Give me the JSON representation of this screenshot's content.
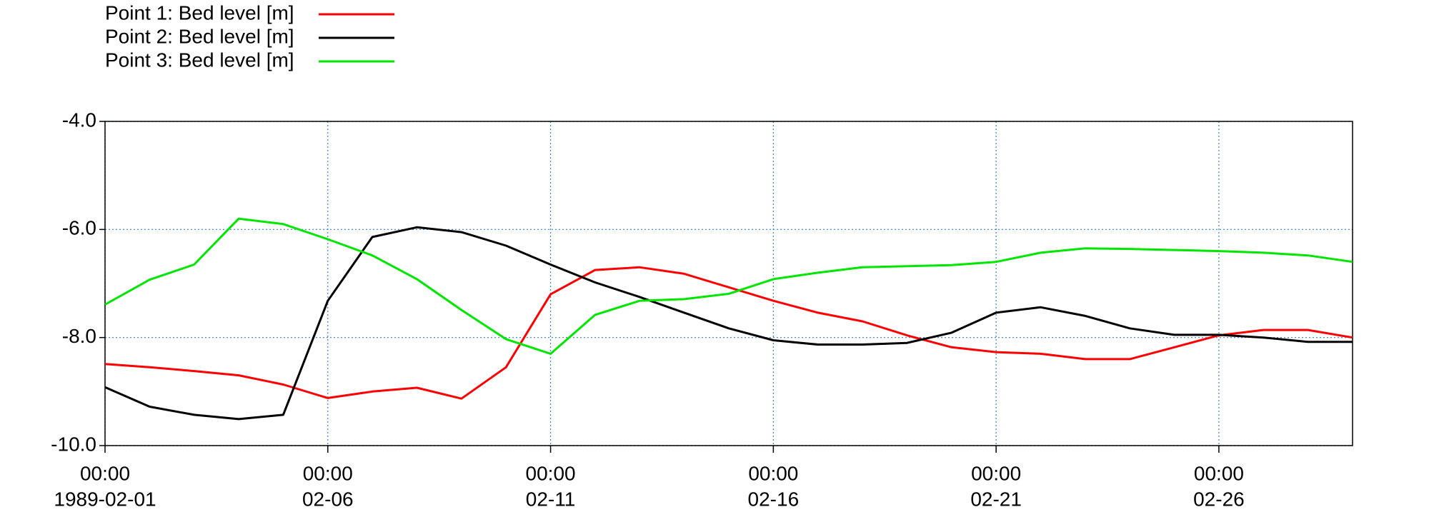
{
  "chart_data": {
    "type": "line",
    "x": [
      "1989-02-01T00:00",
      "1989-02-02T00:00",
      "1989-02-03T00:00",
      "1989-02-04T00:00",
      "1989-02-05T00:00",
      "1989-02-06T00:00",
      "1989-02-07T00:00",
      "1989-02-08T00:00",
      "1989-02-09T00:00",
      "1989-02-10T00:00",
      "1989-02-11T00:00",
      "1989-02-12T00:00",
      "1989-02-13T00:00",
      "1989-02-14T00:00",
      "1989-02-15T00:00",
      "1989-02-16T00:00",
      "1989-02-17T00:00",
      "1989-02-18T00:00",
      "1989-02-19T00:00",
      "1989-02-20T00:00",
      "1989-02-21T00:00",
      "1989-02-22T00:00",
      "1989-02-23T00:00",
      "1989-02-24T00:00",
      "1989-02-25T00:00",
      "1989-02-26T00:00",
      "1989-02-27T00:00",
      "1989-02-28T00:00",
      "1989-03-01T00:00"
    ],
    "series": [
      {
        "name": "Point 1: Bed level [m]",
        "color": "#ff0000",
        "values": [
          -8.49,
          -8.55,
          -8.62,
          -8.7,
          -8.87,
          -9.12,
          -9.0,
          -8.93,
          -9.13,
          -8.55,
          -7.2,
          -6.75,
          -6.7,
          -6.82,
          -7.07,
          -7.32,
          -7.54,
          -7.7,
          -7.96,
          -8.18,
          -8.27,
          -8.3,
          -8.4,
          -8.4,
          -8.18,
          -7.96,
          -7.86,
          -7.86,
          -8.0
        ]
      },
      {
        "name": "Point 2: Bed level [m]",
        "color": "#000000",
        "values": [
          -8.92,
          -9.28,
          -9.43,
          -9.51,
          -9.43,
          -7.32,
          -6.14,
          -5.96,
          -6.05,
          -6.3,
          -6.65,
          -6.98,
          -7.25,
          -7.54,
          -7.83,
          -8.05,
          -8.13,
          -8.13,
          -8.1,
          -7.91,
          -7.54,
          -7.44,
          -7.6,
          -7.83,
          -7.95,
          -7.95,
          -8.0,
          -8.08,
          -8.08
        ]
      },
      {
        "name": "Point 3: Bed level [m]",
        "color": "#00e600",
        "values": [
          -7.39,
          -6.93,
          -6.65,
          -5.8,
          -5.9,
          -6.18,
          -6.48,
          -6.92,
          -7.49,
          -8.03,
          -8.3,
          -7.58,
          -7.32,
          -7.29,
          -7.19,
          -6.92,
          -6.8,
          -6.7,
          -6.68,
          -6.66,
          -6.6,
          -6.43,
          -6.35,
          -6.36,
          -6.38,
          -6.4,
          -6.43,
          -6.48,
          -6.6
        ]
      }
    ],
    "xlim": [
      "1989-02-01T00:00",
      "1989-03-01T00:00"
    ],
    "xticks": [
      {
        "value": "1989-02-01T00:00",
        "label": [
          "00:00",
          "1989-02-01"
        ]
      },
      {
        "value": "1989-02-06T00:00",
        "label": [
          "00:00",
          "02-06"
        ]
      },
      {
        "value": "1989-02-11T00:00",
        "label": [
          "00:00",
          "02-11"
        ]
      },
      {
        "value": "1989-02-16T00:00",
        "label": [
          "00:00",
          "02-16"
        ]
      },
      {
        "value": "1989-02-21T00:00",
        "label": [
          "00:00",
          "02-21"
        ]
      },
      {
        "value": "1989-02-26T00:00",
        "label": [
          "00:00",
          "02-26"
        ]
      }
    ],
    "ylim": [
      -10,
      -4
    ],
    "yticks": [
      {
        "value": -10,
        "label": "-10.0"
      },
      {
        "value": -8,
        "label": "-8.0"
      },
      {
        "value": -6,
        "label": "-6.0"
      },
      {
        "value": -4,
        "label": "-4.0"
      }
    ],
    "grid": true,
    "legend": "top-left"
  }
}
